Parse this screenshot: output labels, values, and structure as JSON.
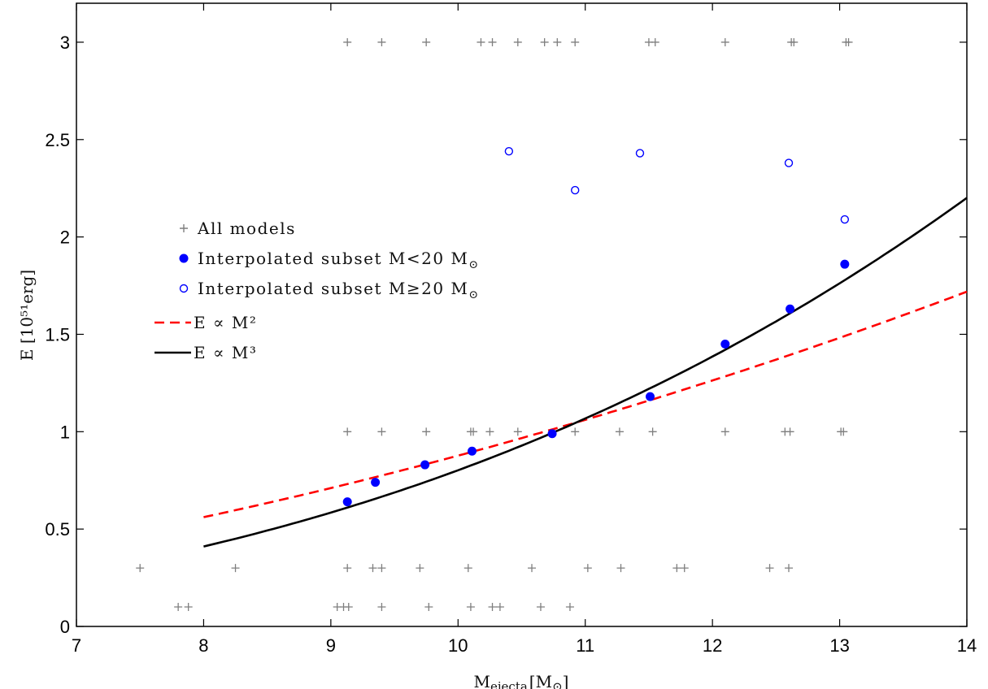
{
  "chart_data": {
    "type": "scatter",
    "title": "",
    "xlabel": {
      "main": "M",
      "sub": "ejecta",
      "rest": "[M",
      "sun": "⊙",
      "close": "]"
    },
    "ylabel": "E [10⁵¹erg]",
    "xlim": [
      7,
      14
    ],
    "ylim": [
      0,
      3.2
    ],
    "xticks": [
      7,
      8,
      9,
      10,
      11,
      12,
      13,
      14
    ],
    "xtick_labels": [
      "7",
      "8",
      "9",
      "10",
      "11",
      "12",
      "13",
      "14"
    ],
    "yticks": [
      0,
      0.5,
      1,
      1.5,
      2,
      2.5,
      3
    ],
    "ytick_labels": [
      "0",
      "0.5",
      "1",
      "1.5",
      "2",
      "2.5",
      "3"
    ],
    "grid": false,
    "legend_position": "left-middle",
    "series": [
      {
        "name": "All models",
        "marker": "plus",
        "color": "#7f7f7f",
        "x": [
          9.13,
          9.4,
          9.75,
          10.18,
          10.27,
          10.47,
          10.68,
          10.78,
          10.92,
          11.5,
          11.55,
          12.1,
          12.62,
          12.64,
          13.05,
          13.07,
          9.13,
          9.4,
          9.75,
          10.1,
          10.12,
          10.25,
          10.47,
          10.92,
          11.27,
          11.53,
          12.1,
          12.57,
          12.61,
          13.01,
          13.03,
          7.5,
          8.25,
          9.13,
          9.33,
          9.4,
          9.7,
          10.08,
          10.58,
          11.02,
          11.28,
          11.72,
          11.78,
          12.45,
          12.6,
          7.8,
          7.88,
          9.05,
          9.1,
          9.14,
          9.4,
          9.77,
          10.1,
          10.27,
          10.33,
          10.65,
          10.88
        ],
        "y": [
          3,
          3,
          3,
          3,
          3,
          3,
          3,
          3,
          3,
          3,
          3,
          3,
          3,
          3,
          3,
          3,
          1,
          1,
          1,
          1,
          1,
          1,
          1,
          1,
          1,
          1,
          1,
          1,
          1,
          1,
          1,
          0.3,
          0.3,
          0.3,
          0.3,
          0.3,
          0.3,
          0.3,
          0.3,
          0.3,
          0.3,
          0.3,
          0.3,
          0.3,
          0.3,
          0.1,
          0.1,
          0.1,
          0.1,
          0.1,
          0.1,
          0.1,
          0.1,
          0.1,
          0.1,
          0.1,
          0.1
        ]
      },
      {
        "name": "Interpolated subset M<20 M",
        "name_sub": "⊙",
        "marker": "filled-circle",
        "color": "#0000ff",
        "x": [
          9.13,
          9.35,
          9.74,
          10.11,
          10.74,
          11.51,
          12.1,
          12.61,
          13.04
        ],
        "y": [
          0.64,
          0.74,
          0.83,
          0.9,
          0.99,
          1.18,
          1.45,
          1.63,
          1.86
        ]
      },
      {
        "name": "Interpolated subset M≥20 M",
        "name_sub": "⊙",
        "marker": "open-circle",
        "color": "#0000ff",
        "x": [
          10.4,
          10.92,
          11.43,
          12.6,
          13.04
        ],
        "y": [
          2.44,
          2.24,
          2.43,
          2.38,
          2.09
        ]
      },
      {
        "name": "E ∝ M²",
        "type": "line",
        "style": "dashed",
        "color": "#ff0000",
        "function": "power",
        "exponent": 2,
        "coefficient": 0.00877,
        "x_range": [
          8,
          14
        ]
      },
      {
        "name": "E ∝ M³",
        "type": "line",
        "style": "solid",
        "color": "#000000",
        "function": "power",
        "exponent": 3,
        "coefficient": 0.000802,
        "x_range": [
          8,
          14
        ]
      }
    ]
  }
}
